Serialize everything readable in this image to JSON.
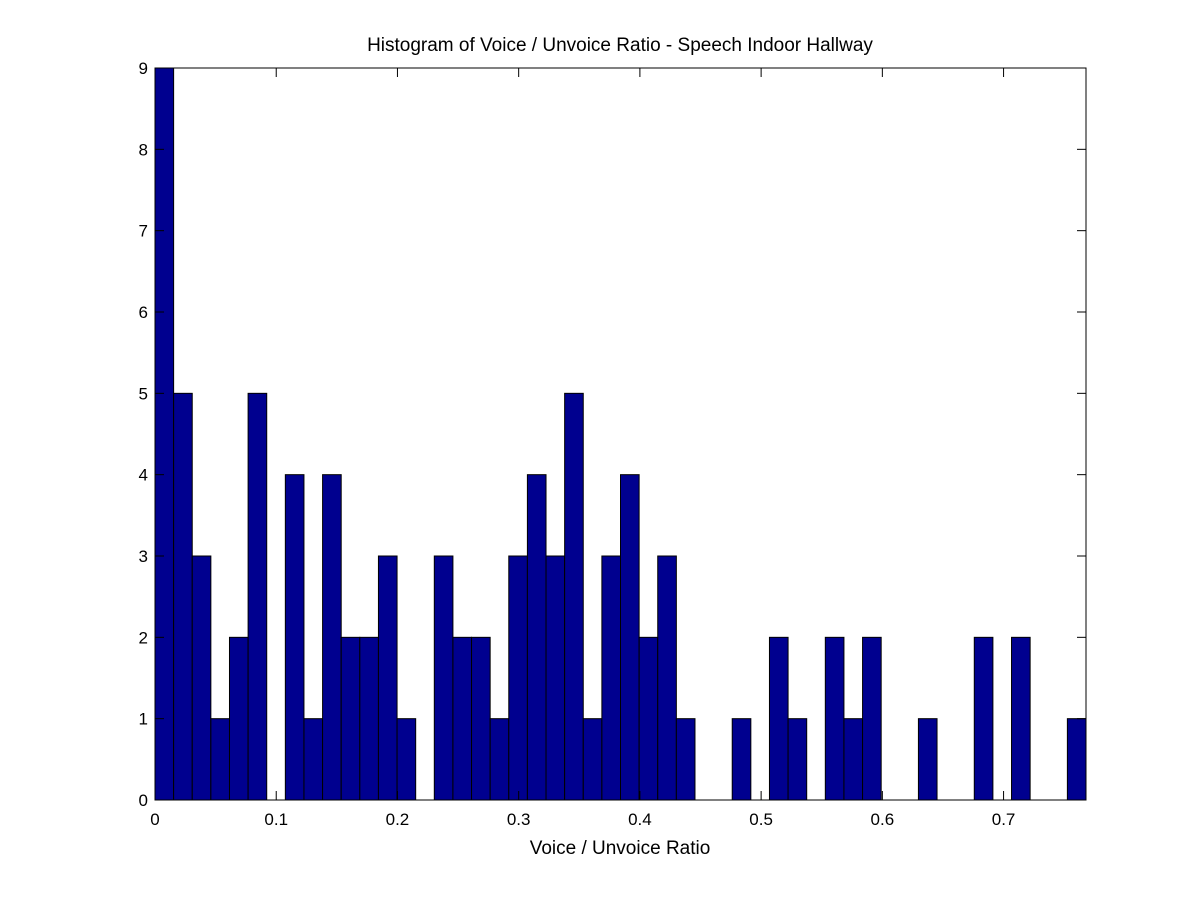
{
  "chart_data": {
    "type": "bar",
    "title": "Histogram of Voice / Unvoice Ratio - Speech Indoor Hallway",
    "xlabel": "Voice / Unvoice Ratio",
    "ylabel": "",
    "xlim": [
      0,
      0.768
    ],
    "ylim": [
      0,
      9
    ],
    "bin_width": 0.01536,
    "xticks": [
      "0",
      "0.1",
      "0.2",
      "0.3",
      "0.4",
      "0.5",
      "0.6",
      "0.7"
    ],
    "xtick_values": [
      0,
      0.1,
      0.2,
      0.3,
      0.4,
      0.5,
      0.6,
      0.7
    ],
    "yticks": [
      "0",
      "1",
      "2",
      "3",
      "4",
      "5",
      "6",
      "7",
      "8",
      "9"
    ],
    "ytick_values": [
      0,
      1,
      2,
      3,
      4,
      5,
      6,
      7,
      8,
      9
    ],
    "values": [
      9,
      5,
      3,
      1,
      2,
      5,
      0,
      4,
      1,
      4,
      2,
      2,
      3,
      1,
      0,
      3,
      2,
      2,
      1,
      3,
      4,
      3,
      5,
      1,
      3,
      4,
      2,
      3,
      1,
      0,
      0,
      1,
      0,
      2,
      1,
      0,
      2,
      1,
      2,
      0,
      0,
      1,
      0,
      0,
      2,
      0,
      2,
      0,
      0,
      1
    ],
    "grid": false,
    "colors": {
      "bar_fill": "#00008f",
      "bar_edge": "#000000",
      "axes": "#000000",
      "background": "#ffffff"
    }
  }
}
